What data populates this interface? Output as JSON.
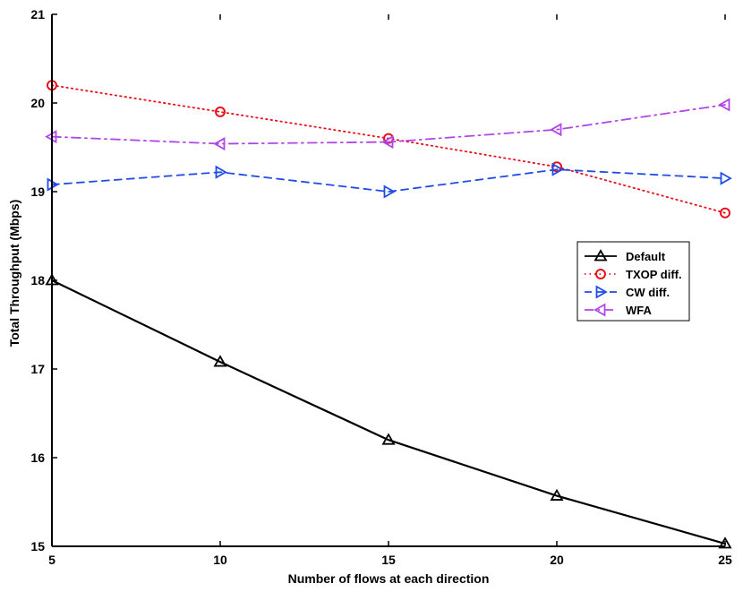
{
  "chart_data": {
    "type": "line",
    "title": "",
    "xlabel": "Number of flows at each direction",
    "ylabel": "Total Throughput (Mbps)",
    "x": [
      5,
      10,
      15,
      20,
      25
    ],
    "xlim": [
      5,
      25
    ],
    "ylim": [
      15,
      21
    ],
    "x_ticks": [
      "5",
      "10",
      "15",
      "20",
      "25"
    ],
    "y_ticks": [
      "15",
      "16",
      "17",
      "18",
      "19",
      "20",
      "21"
    ],
    "grid": false,
    "legend_position": "right",
    "series": [
      {
        "name": "Default",
        "values": [
          18.0,
          17.08,
          16.2,
          15.57,
          15.03
        ],
        "color": "#000000",
        "line_style": "solid",
        "marker": "triangle-up"
      },
      {
        "name": "TXOP diff.",
        "values": [
          20.2,
          19.9,
          19.6,
          19.28,
          18.76
        ],
        "color": "#e8101c",
        "line_style": "dotted",
        "marker": "circle"
      },
      {
        "name": "CW diff.",
        "values": [
          19.08,
          19.22,
          19.0,
          19.25,
          19.15
        ],
        "color": "#1f4be8",
        "line_style": "dashed",
        "marker": "triangle-right"
      },
      {
        "name": "WFA",
        "values": [
          19.62,
          19.54,
          19.56,
          19.7,
          19.98
        ],
        "color": "#b145e8",
        "line_style": "dashdot",
        "marker": "triangle-left"
      }
    ]
  }
}
